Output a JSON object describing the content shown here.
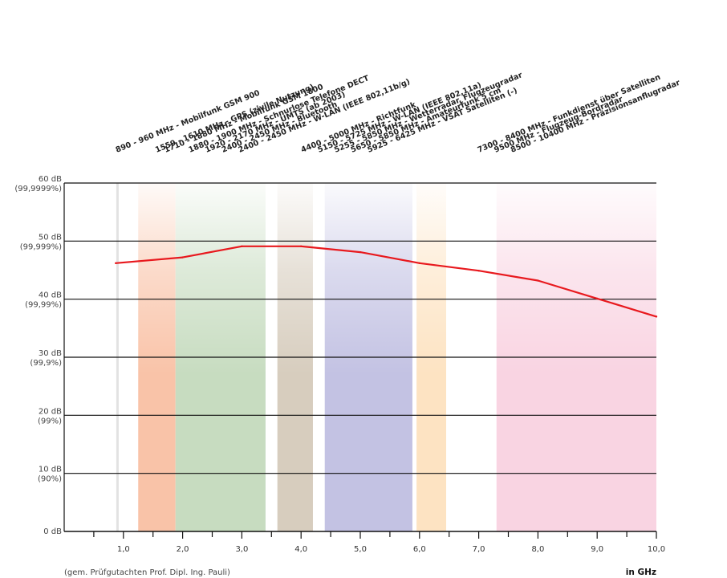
{
  "chart_data": {
    "type": "line",
    "x": [
      1.0,
      2.0,
      3.0,
      4.0,
      5.0,
      6.0,
      7.0,
      8.0,
      9.0,
      10.0
    ],
    "series": [
      {
        "values": [
          46.2,
          47.2,
          49.1,
          49.1,
          48.1,
          46.2,
          44.9,
          43.2,
          40.1,
          37.0
        ],
        "color": "#e8191e"
      }
    ],
    "xlim": [
      0.0,
      10.0
    ],
    "ylim": [
      0,
      60
    ],
    "x_ticks": [
      "1,0",
      "2,0",
      "3,0",
      "4,0",
      "5,0",
      "6,0",
      "7,0",
      "8,0",
      "9,0",
      "10,0"
    ],
    "y_ticks": [
      {
        "value": 0,
        "label": "0 dB",
        "sub": ""
      },
      {
        "value": 10,
        "label": "10 dB",
        "sub": "(90%)"
      },
      {
        "value": 20,
        "label": "20 dB",
        "sub": "(99%)"
      },
      {
        "value": 30,
        "label": "30 dB",
        "sub": "(99,9%)"
      },
      {
        "value": 40,
        "label": "40 dB",
        "sub": "(99,99%)"
      },
      {
        "value": 50,
        "label": "50 dB",
        "sub": "(99,999%)"
      },
      {
        "value": 60,
        "label": "60 dB",
        "sub": "(99,9999%)"
      }
    ],
    "grid": true,
    "bands": [
      {
        "from": 1.25,
        "to": 1.88,
        "color": "#f9c3a8"
      },
      {
        "from": 1.88,
        "to": 3.4,
        "color": "#c7dcc0"
      },
      {
        "from": 3.6,
        "to": 4.2,
        "color": "#d7cdbe"
      },
      {
        "from": 4.4,
        "to": 5.88,
        "color": "#c3c2e3"
      },
      {
        "from": 5.95,
        "to": 6.45,
        "color": "#fde3c2"
      },
      {
        "from": 7.3,
        "to": 10.0,
        "color": "#f9d4e2"
      }
    ],
    "band_labels": [
      {
        "x": 0.89,
        "text": "890 - 960 MHz - Mobilfunk GSM 900"
      },
      {
        "x": 1.559,
        "text": "1559 - 1610 MHz - GPS (zivile Nutzung)"
      },
      {
        "x": 1.71,
        "text": "1710 - 1880 MHz - Mobilfunk GSM 1800"
      },
      {
        "x": 2.12,
        "text": "1880 - 1900 MHz - Schnurlose Telefone DECT"
      },
      {
        "x": 2.4,
        "text": "1920 - 2170 MHz - UMTS (ab 2003)"
      },
      {
        "x": 2.68,
        "text": "2400 - 2450 MHz - Bluetooth"
      },
      {
        "x": 2.96,
        "text": "2400 - 2450 MHz - W-LAN (IEEE 802,11b/g)"
      },
      {
        "x": 4.02,
        "text": "4400 - 5000 MHz - Richtfunk"
      },
      {
        "x": 4.3,
        "text": "5150 - 5725 MHz - W-LAN (IEEE 802,11a)"
      },
      {
        "x": 4.58,
        "text": "5255 - 5850 MHz - Wetterradar, Flugzeugradar"
      },
      {
        "x": 4.86,
        "text": "5650 - 5850 MHz - Amateurfunk 5 cm"
      },
      {
        "x": 5.14,
        "text": "5925 - 6425 MHz - VSAT Satelliten (-)"
      },
      {
        "x": 7.0,
        "text": "7300 - 8400 MHz - Funkdienst über Satelliten"
      },
      {
        "x": 7.28,
        "text": "9500 MHz - Flugzeug-Bordradar"
      },
      {
        "x": 7.56,
        "text": "8500 - 10400 MHz - Präzisionsanflugradar"
      }
    ],
    "footnote": "(gem. Prüfgutachten Prof. Dipl. Ing. Pauli)",
    "x_unit": "in GHz"
  }
}
